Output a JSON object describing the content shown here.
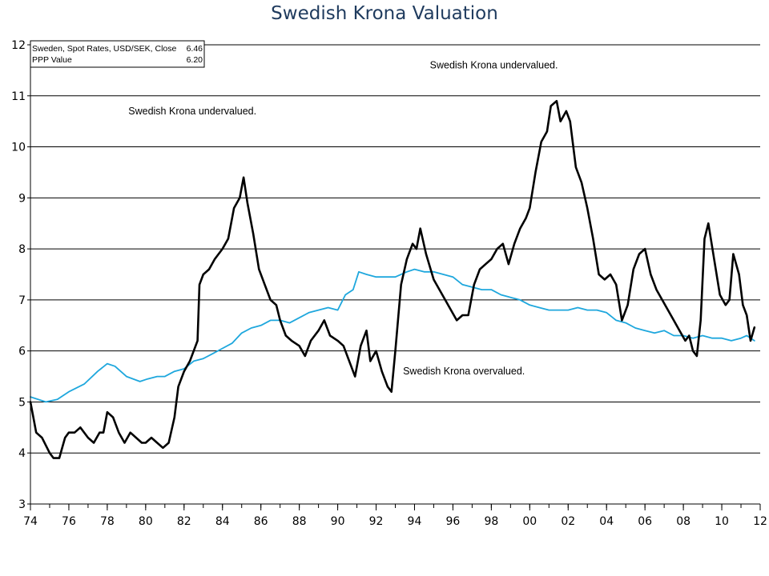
{
  "chart_data": {
    "type": "line",
    "title": "Swedish Krona Valuation",
    "xlabel": "",
    "ylabel": "",
    "xlim": [
      1974,
      2012
    ],
    "ylim": [
      3,
      12
    ],
    "y_ticks": [
      "3",
      "4",
      "5",
      "6",
      "7",
      "8",
      "9",
      "10",
      "11",
      "12"
    ],
    "x_ticks": [
      {
        "x": 1974,
        "label": "74"
      },
      {
        "x": 1976,
        "label": "76"
      },
      {
        "x": 1978,
        "label": "78"
      },
      {
        "x": 1980,
        "label": "80"
      },
      {
        "x": 1982,
        "label": "82"
      },
      {
        "x": 1984,
        "label": "84"
      },
      {
        "x": 1986,
        "label": "86"
      },
      {
        "x": 1988,
        "label": "88"
      },
      {
        "x": 1990,
        "label": "90"
      },
      {
        "x": 1992,
        "label": "92"
      },
      {
        "x": 1994,
        "label": "94"
      },
      {
        "x": 1996,
        "label": "96"
      },
      {
        "x": 1998,
        "label": "98"
      },
      {
        "x": 2000,
        "label": "00"
      },
      {
        "x": 2002,
        "label": "02"
      },
      {
        "x": 2004,
        "label": "04"
      },
      {
        "x": 2006,
        "label": "06"
      },
      {
        "x": 2008,
        "label": "08"
      },
      {
        "x": 2010,
        "label": "10"
      },
      {
        "x": 2012,
        "label": "12"
      }
    ],
    "grid": "horizontal",
    "legend": {
      "placement": "top-left",
      "entries": [
        {
          "label": "Sweden, Spot Rates, USD/SEK, Close",
          "value": "6.46"
        },
        {
          "label": "PPP Value",
          "value": "6.20"
        }
      ]
    },
    "annotations": [
      {
        "text": "Swedish Krona undervalued.",
        "x": 1979.1,
        "y": 10.7
      },
      {
        "text": "Swedish Krona undervalued.",
        "x": 1994.8,
        "y": 11.6
      },
      {
        "text": "Swedish Krona overvalued.",
        "x": 1993.4,
        "y": 5.6
      }
    ],
    "series": [
      {
        "name": "Sweden, Spot Rates, USD/SEK, Close",
        "color": "#000000",
        "x": [
          1974.0,
          1974.3,
          1974.6,
          1975.0,
          1975.2,
          1975.5,
          1975.8,
          1976.0,
          1976.3,
          1976.6,
          1977.0,
          1977.3,
          1977.6,
          1977.8,
          1978.0,
          1978.3,
          1978.6,
          1978.9,
          1979.2,
          1979.5,
          1979.8,
          1980.0,
          1980.3,
          1980.6,
          1980.9,
          1981.2,
          1981.5,
          1981.7,
          1982.0,
          1982.3,
          1982.5,
          1982.7,
          1982.8,
          1983.0,
          1983.3,
          1983.6,
          1984.0,
          1984.3,
          1984.6,
          1984.9,
          1985.1,
          1985.3,
          1985.6,
          1985.9,
          1986.2,
          1986.5,
          1986.8,
          1987.0,
          1987.3,
          1987.6,
          1988.0,
          1988.3,
          1988.6,
          1989.0,
          1989.3,
          1989.6,
          1990.0,
          1990.3,
          1990.6,
          1990.9,
          1991.2,
          1991.5,
          1991.7,
          1992.0,
          1992.3,
          1992.6,
          1992.8,
          1993.0,
          1993.3,
          1993.6,
          1993.9,
          1994.1,
          1994.3,
          1994.6,
          1995.0,
          1995.3,
          1995.6,
          1995.9,
          1996.2,
          1996.5,
          1996.8,
          1997.1,
          1997.4,
          1997.7,
          1998.0,
          1998.3,
          1998.6,
          1998.9,
          1999.2,
          1999.5,
          1999.8,
          2000.0,
          2000.3,
          2000.6,
          2000.9,
          2001.1,
          2001.4,
          2001.6,
          2001.9,
          2002.1,
          2002.4,
          2002.7,
          2003.0,
          2003.3,
          2003.6,
          2003.9,
          2004.2,
          2004.5,
          2004.8,
          2005.1,
          2005.4,
          2005.7,
          2006.0,
          2006.3,
          2006.6,
          2006.9,
          2007.2,
          2007.5,
          2007.8,
          2008.1,
          2008.3,
          2008.5,
          2008.7,
          2008.9,
          2009.1,
          2009.3,
          2009.6,
          2009.9,
          2010.2,
          2010.4,
          2010.6,
          2010.9,
          2011.1,
          2011.3,
          2011.5,
          2011.7
        ],
        "values": [
          5.0,
          4.4,
          4.3,
          4.0,
          3.9,
          3.9,
          4.3,
          4.4,
          4.4,
          4.5,
          4.3,
          4.2,
          4.4,
          4.4,
          4.8,
          4.7,
          4.4,
          4.2,
          4.4,
          4.3,
          4.2,
          4.2,
          4.3,
          4.2,
          4.1,
          4.2,
          4.7,
          5.3,
          5.6,
          5.8,
          6.0,
          6.2,
          7.3,
          7.5,
          7.6,
          7.8,
          8.0,
          8.2,
          8.8,
          9.0,
          9.4,
          8.9,
          8.3,
          7.6,
          7.3,
          7.0,
          6.9,
          6.6,
          6.3,
          6.2,
          6.1,
          5.9,
          6.2,
          6.4,
          6.6,
          6.3,
          6.2,
          6.1,
          5.8,
          5.5,
          6.1,
          6.4,
          5.8,
          6.0,
          5.6,
          5.3,
          5.2,
          6.0,
          7.3,
          7.8,
          8.1,
          8.0,
          8.4,
          7.9,
          7.4,
          7.2,
          7.0,
          6.8,
          6.6,
          6.7,
          6.7,
          7.3,
          7.6,
          7.7,
          7.8,
          8.0,
          8.1,
          7.7,
          8.1,
          8.4,
          8.6,
          8.8,
          9.5,
          10.1,
          10.3,
          10.8,
          10.9,
          10.5,
          10.7,
          10.5,
          9.6,
          9.3,
          8.8,
          8.2,
          7.5,
          7.4,
          7.5,
          7.3,
          6.6,
          6.9,
          7.6,
          7.9,
          8.0,
          7.5,
          7.2,
          7.0,
          6.8,
          6.6,
          6.4,
          6.2,
          6.3,
          6.0,
          5.9,
          6.6,
          8.2,
          8.5,
          7.8,
          7.1,
          6.9,
          7.0,
          7.9,
          7.5,
          6.9,
          6.7,
          6.2,
          6.46
        ]
      },
      {
        "name": "PPP Value",
        "color": "#1ea7dd",
        "x": [
          1974.0,
          1974.8,
          1975.4,
          1976.0,
          1976.8,
          1977.5,
          1978.0,
          1978.4,
          1979.0,
          1979.7,
          1980.1,
          1980.6,
          1981.0,
          1981.5,
          1982.0,
          1982.5,
          1983.0,
          1983.5,
          1984.0,
          1984.5,
          1985.0,
          1985.5,
          1986.0,
          1986.5,
          1987.0,
          1987.5,
          1988.0,
          1988.5,
          1989.0,
          1989.5,
          1990.0,
          1990.4,
          1990.8,
          1991.1,
          1991.5,
          1992.0,
          1992.5,
          1993.0,
          1993.6,
          1994.0,
          1994.5,
          1995.0,
          1995.5,
          1996.0,
          1996.5,
          1997.0,
          1997.5,
          1998.0,
          1998.5,
          1999.0,
          1999.5,
          2000.0,
          2000.5,
          2001.0,
          2001.5,
          2002.0,
          2002.5,
          2003.0,
          2003.5,
          2004.0,
          2004.5,
          2005.0,
          2005.5,
          2006.0,
          2006.5,
          2007.0,
          2007.5,
          2008.0,
          2008.5,
          2009.0,
          2009.5,
          2010.0,
          2010.5,
          2011.0,
          2011.3,
          2011.7
        ],
        "values": [
          5.1,
          5.0,
          5.05,
          5.2,
          5.35,
          5.6,
          5.75,
          5.7,
          5.5,
          5.4,
          5.45,
          5.5,
          5.5,
          5.6,
          5.65,
          5.8,
          5.85,
          5.95,
          6.05,
          6.15,
          6.35,
          6.45,
          6.5,
          6.6,
          6.6,
          6.55,
          6.65,
          6.75,
          6.8,
          6.85,
          6.8,
          7.1,
          7.2,
          7.55,
          7.5,
          7.45,
          7.45,
          7.45,
          7.55,
          7.6,
          7.55,
          7.55,
          7.5,
          7.45,
          7.3,
          7.25,
          7.2,
          7.2,
          7.1,
          7.05,
          7.0,
          6.9,
          6.85,
          6.8,
          6.8,
          6.8,
          6.85,
          6.8,
          6.8,
          6.75,
          6.6,
          6.55,
          6.45,
          6.4,
          6.35,
          6.4,
          6.3,
          6.3,
          6.25,
          6.3,
          6.25,
          6.25,
          6.2,
          6.25,
          6.3,
          6.2
        ]
      }
    ]
  }
}
